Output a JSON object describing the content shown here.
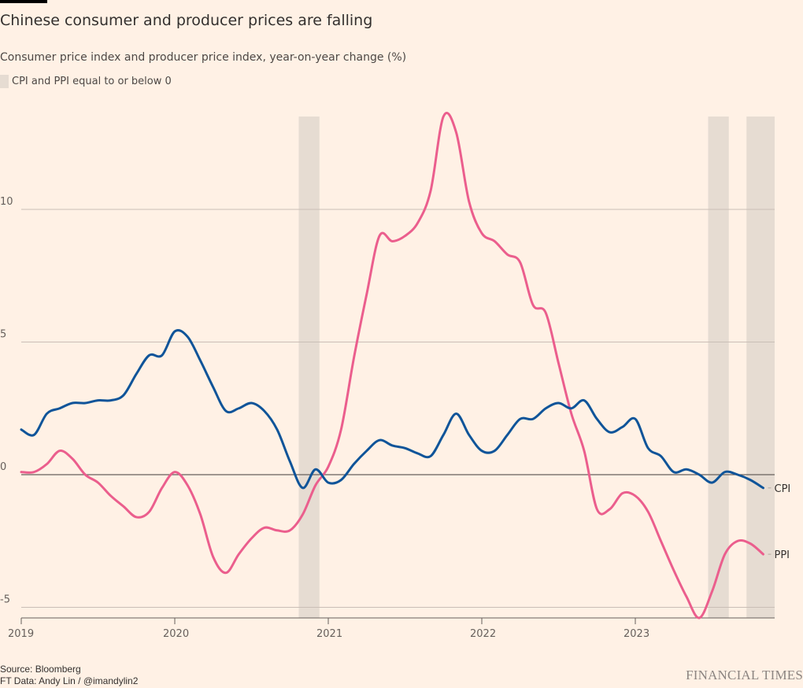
{
  "header": {
    "title": "Chinese consumer and producer prices are falling",
    "subtitle": "Consumer price index and producer price index, year-on-year change (%)",
    "legend_label": "CPI and PPI equal to or below 0"
  },
  "footer": {
    "source": "Source: Bloomberg",
    "credit": "FT Data: Andy Lin / @imandylin2",
    "brand": "FINANCIAL TIMES"
  },
  "colors": {
    "background": "#fff1e5",
    "cpi": "#0f5499",
    "ppi": "#eb5e8d",
    "shade": "#e6dcd2",
    "grid": "#c9beb6",
    "zero": "#66605c"
  },
  "chart_data": {
    "type": "line",
    "title": "Chinese consumer and producer prices are falling",
    "subtitle": "Consumer price index and producer price index, year-on-year change (%)",
    "xlabel": "",
    "ylabel": "",
    "x_start": "2019-01",
    "x_end": "2023-11",
    "x_ticks": [
      "2019",
      "2020",
      "2021",
      "2022",
      "2023"
    ],
    "y_ticks": [
      -5,
      0,
      5,
      10
    ],
    "ylim": [
      -5.5,
      13.5
    ],
    "grid": true,
    "legend": "top-left",
    "shaded_regions": {
      "label": "CPI and PPI equal to or below 0",
      "ranges": [
        [
          "2020-11",
          "2020-12"
        ],
        [
          "2023-07",
          "2023-08"
        ],
        [
          "2023-10",
          "2023-12"
        ]
      ]
    },
    "x": [
      "2019-01",
      "2019-02",
      "2019-03",
      "2019-04",
      "2019-05",
      "2019-06",
      "2019-07",
      "2019-08",
      "2019-09",
      "2019-10",
      "2019-11",
      "2019-12",
      "2020-01",
      "2020-02",
      "2020-03",
      "2020-04",
      "2020-05",
      "2020-06",
      "2020-07",
      "2020-08",
      "2020-09",
      "2020-10",
      "2020-11",
      "2020-12",
      "2021-01",
      "2021-02",
      "2021-03",
      "2021-04",
      "2021-05",
      "2021-06",
      "2021-07",
      "2021-08",
      "2021-09",
      "2021-10",
      "2021-11",
      "2021-12",
      "2022-01",
      "2022-02",
      "2022-03",
      "2022-04",
      "2022-05",
      "2022-06",
      "2022-07",
      "2022-08",
      "2022-09",
      "2022-10",
      "2022-11",
      "2022-12",
      "2023-01",
      "2023-02",
      "2023-03",
      "2023-04",
      "2023-05",
      "2023-06",
      "2023-07",
      "2023-08",
      "2023-09",
      "2023-10",
      "2023-11"
    ],
    "series": [
      {
        "name": "CPI",
        "values": [
          1.7,
          1.5,
          2.3,
          2.5,
          2.7,
          2.7,
          2.8,
          2.8,
          3.0,
          3.8,
          4.5,
          4.5,
          5.4,
          5.2,
          4.3,
          3.3,
          2.4,
          2.5,
          2.7,
          2.4,
          1.7,
          0.5,
          -0.5,
          0.2,
          -0.3,
          -0.2,
          0.4,
          0.9,
          1.3,
          1.1,
          1.0,
          0.8,
          0.7,
          1.5,
          2.3,
          1.5,
          0.9,
          0.9,
          1.5,
          2.1,
          2.1,
          2.5,
          2.7,
          2.5,
          2.8,
          2.1,
          1.6,
          1.8,
          2.1,
          1.0,
          0.7,
          0.1,
          0.2,
          0.0,
          -0.3,
          0.1,
          0.0,
          -0.2,
          -0.5
        ]
      },
      {
        "name": "PPI",
        "values": [
          0.1,
          0.1,
          0.4,
          0.9,
          0.6,
          0.0,
          -0.3,
          -0.8,
          -1.2,
          -1.6,
          -1.4,
          -0.5,
          0.1,
          -0.4,
          -1.5,
          -3.1,
          -3.7,
          -3.0,
          -2.4,
          -2.0,
          -2.1,
          -2.1,
          -1.5,
          -0.4,
          0.3,
          1.7,
          4.4,
          6.8,
          9.0,
          8.8,
          9.0,
          9.5,
          10.7,
          13.5,
          12.9,
          10.3,
          9.1,
          8.8,
          8.3,
          8.0,
          6.4,
          6.1,
          4.2,
          2.3,
          0.9,
          -1.3,
          -1.3,
          -0.7,
          -0.8,
          -1.4,
          -2.5,
          -3.6,
          -4.6,
          -5.4,
          -4.4,
          -3.0,
          -2.5,
          -2.6,
          -3.0
        ]
      }
    ],
    "end_labels": [
      "CPI",
      "PPI"
    ]
  }
}
